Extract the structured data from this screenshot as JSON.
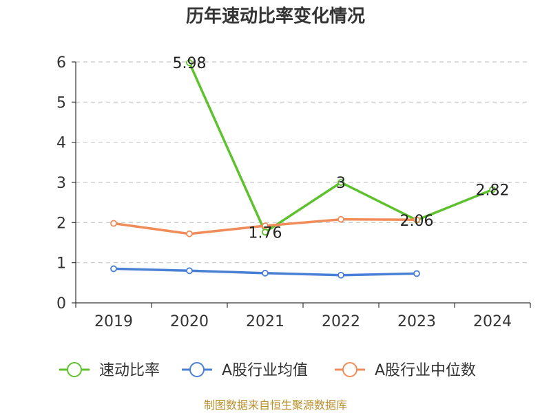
{
  "chart_data": {
    "type": "line",
    "title": "历年速动比率变化情况",
    "categories": [
      "2019",
      "2020",
      "2021",
      "2022",
      "2023",
      "2024"
    ],
    "ylim": [
      0,
      6
    ],
    "yticks": [
      "0",
      "1",
      "2",
      "3",
      "4",
      "5",
      "6"
    ],
    "grid": true,
    "legend_position": "bottom",
    "series": [
      {
        "name": "速动比率",
        "color": "#5ec12e",
        "values": [
          null,
          5.98,
          1.76,
          3,
          2.06,
          2.82
        ],
        "labels": [
          null,
          "5.98",
          "1.76",
          "3",
          "2.06",
          "2.82"
        ]
      },
      {
        "name": "A股行业均值",
        "color": "#4a7fd6",
        "values": [
          0.85,
          0.8,
          0.74,
          0.69,
          0.73,
          null
        ]
      },
      {
        "name": "A股行业中位数",
        "color": "#f08c5a",
        "values": [
          1.98,
          1.72,
          1.92,
          2.08,
          2.07,
          null
        ]
      }
    ],
    "source": "制图数据来自恒生聚源数据库"
  }
}
